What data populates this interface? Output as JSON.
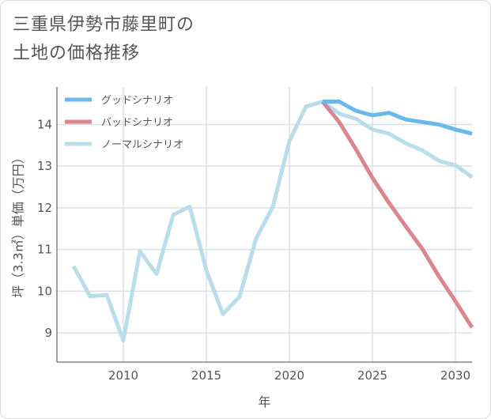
{
  "title_lines": [
    "三重県伊勢市藤里町の",
    "土地の価格推移"
  ],
  "chart_data": {
    "type": "line",
    "xlabel": "年",
    "ylabel": "坪（3.3㎡）単価（万円）",
    "xlim": [
      2006,
      2031
    ],
    "ylim": [
      8.3,
      14.9
    ],
    "x_ticks": [
      2010,
      2015,
      2020,
      2025,
      2030
    ],
    "y_ticks": [
      9,
      10,
      11,
      12,
      13,
      14
    ],
    "grid": true,
    "legend_position": "top-left",
    "series": [
      {
        "name": "グッドシナリオ",
        "color": "#6bb8ec",
        "x": [
          2022,
          2023,
          2024,
          2025,
          2026,
          2027,
          2028,
          2029,
          2030,
          2031
        ],
        "y": [
          14.55,
          14.55,
          14.33,
          14.22,
          14.28,
          14.12,
          14.06,
          14.0,
          13.88,
          13.78
        ]
      },
      {
        "name": "バッドシナリオ",
        "color": "#d9868d",
        "x": [
          2022,
          2023,
          2024,
          2025,
          2026,
          2027,
          2028,
          2029,
          2030,
          2031
        ],
        "y": [
          14.55,
          14.06,
          13.41,
          12.72,
          12.12,
          11.56,
          11.02,
          10.36,
          9.76,
          9.13
        ]
      },
      {
        "name": "ノーマルシナリオ",
        "color": "#b9dde9",
        "x": [
          2007,
          2008,
          2009,
          2010,
          2011,
          2012,
          2013,
          2014,
          2015,
          2016,
          2017,
          2018,
          2019,
          2020,
          2021,
          2022,
          2023,
          2024,
          2025,
          2026,
          2027,
          2028,
          2029,
          2030,
          2031
        ],
        "y": [
          10.6,
          9.88,
          9.91,
          8.82,
          10.96,
          10.41,
          11.83,
          12.03,
          10.5,
          9.45,
          9.87,
          11.27,
          12.02,
          13.6,
          14.43,
          14.55,
          14.26,
          14.14,
          13.88,
          13.78,
          13.55,
          13.38,
          13.13,
          13.02,
          12.74
        ]
      }
    ]
  }
}
